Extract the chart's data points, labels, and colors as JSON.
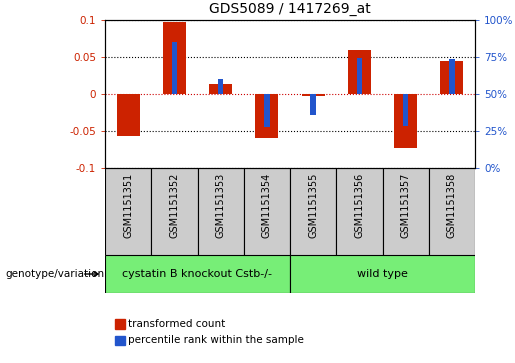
{
  "title": "GDS5089 / 1417269_at",
  "samples": [
    "GSM1151351",
    "GSM1151352",
    "GSM1151353",
    "GSM1151354",
    "GSM1151355",
    "GSM1151356",
    "GSM1151357",
    "GSM1151358"
  ],
  "red_values": [
    -0.057,
    0.097,
    0.013,
    -0.06,
    -0.003,
    0.06,
    -0.073,
    0.045
  ],
  "blue_values": [
    null,
    0.07,
    0.02,
    -0.045,
    -0.028,
    0.048,
    -0.043,
    0.047
  ],
  "group1_label": "cystatin B knockout Cstb-/-",
  "group2_label": "wild type",
  "group1_indices": [
    0,
    1,
    2,
    3
  ],
  "group2_indices": [
    4,
    5,
    6,
    7
  ],
  "group_color": "#77EE77",
  "bar_color_red": "#CC2200",
  "bar_color_blue": "#2255CC",
  "ylim": [
    -0.1,
    0.1
  ],
  "yticks_left": [
    -0.1,
    -0.05,
    0,
    0.05,
    0.1
  ],
  "yticks_right": [
    0,
    25,
    50,
    75,
    100
  ],
  "genotype_label": "genotype/variation",
  "legend_red": "transformed count",
  "legend_blue": "percentile rank within the sample",
  "red_bar_width": 0.5,
  "blue_bar_width": 0.12,
  "sample_box_color": "#cccccc"
}
